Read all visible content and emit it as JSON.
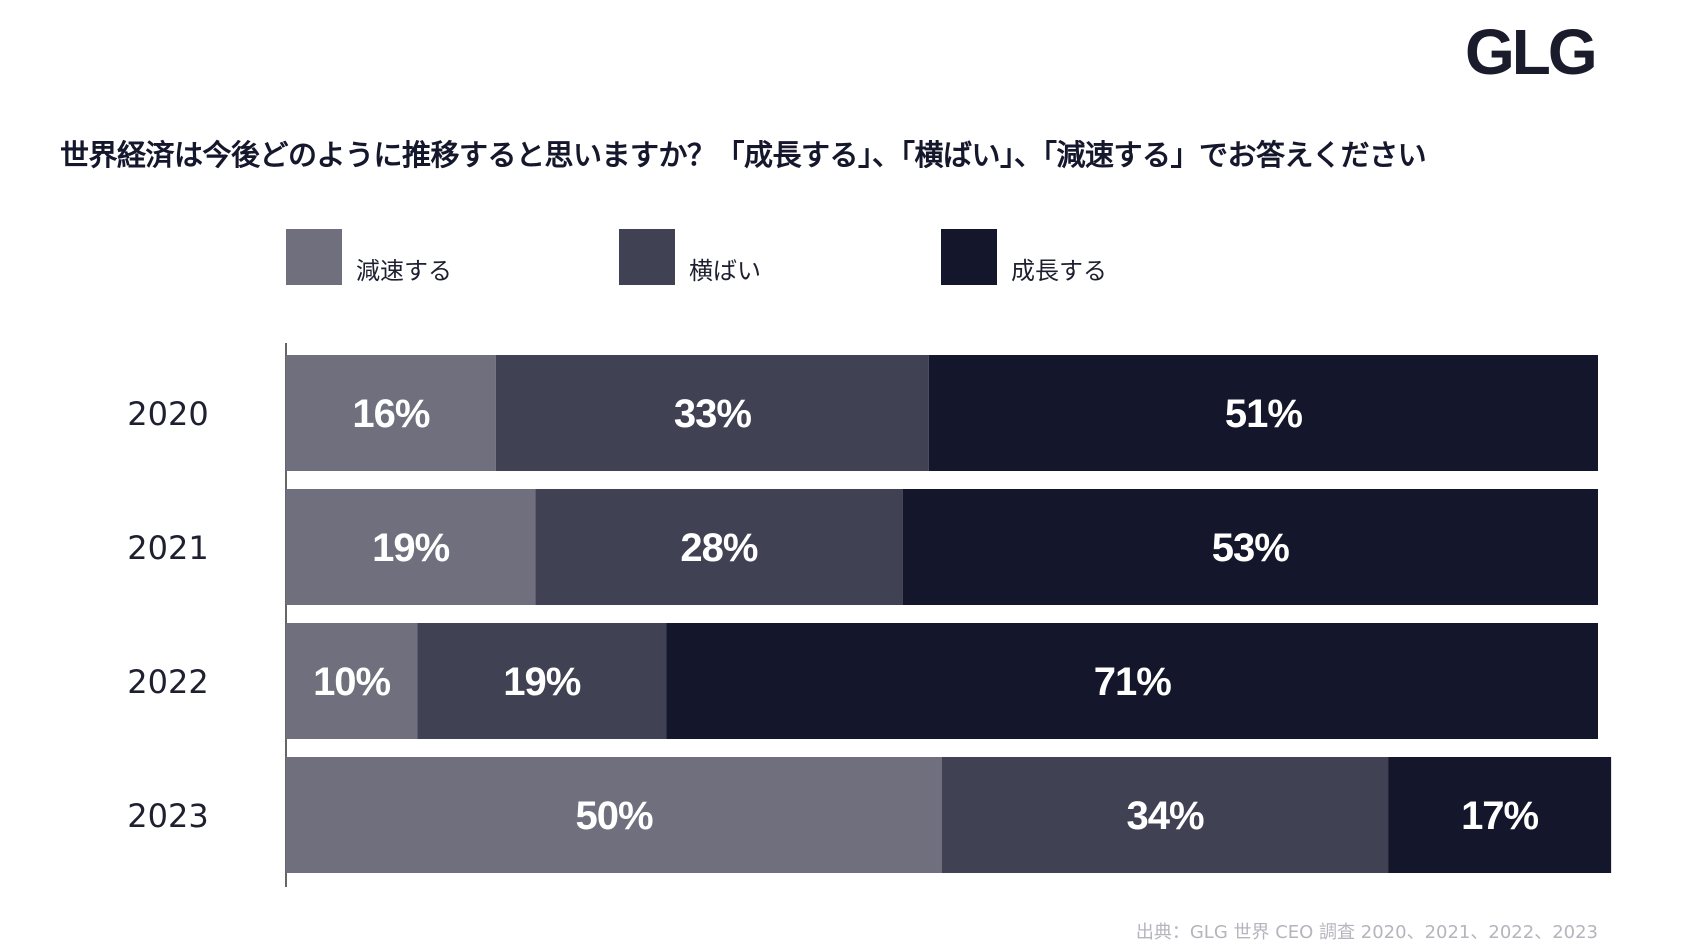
{
  "logo": "GLG",
  "title": "世界経済は今後どのように推移すると思いますか？「成長する」、「横ばい」、「減速する」でお答えください",
  "source": "出典：GLG 世界 CEO 調査 2020、2021、2022、2023",
  "colors": {
    "decelerate": "#6f6f7d",
    "flat": "#404254",
    "grow": "#14162b",
    "label": "#ffffff",
    "axis": "#333333"
  },
  "chart_data": {
    "type": "bar",
    "orientation": "horizontal",
    "stacked": true,
    "title": "世界経済は今後どのように推移すると思いますか？「成長する」、「横ばい」、「減速する」でお答えください",
    "categories": [
      "2020",
      "2021",
      "2022",
      "2023"
    ],
    "series": [
      {
        "name": "減速する",
        "values": [
          16,
          19,
          10,
          50
        ],
        "labels": [
          "16%",
          "19%",
          "10%",
          "50%"
        ]
      },
      {
        "name": "横ばい",
        "values": [
          33,
          28,
          19,
          34
        ],
        "labels": [
          "33%",
          "28%",
          "19%",
          "34%"
        ]
      },
      {
        "name": "成長する",
        "values": [
          51,
          53,
          71,
          17
        ],
        "labels": [
          "51%",
          "53%",
          "71%",
          "17%"
        ]
      }
    ],
    "xlim": [
      0,
      100
    ],
    "legend_position": "top",
    "grid": false
  }
}
